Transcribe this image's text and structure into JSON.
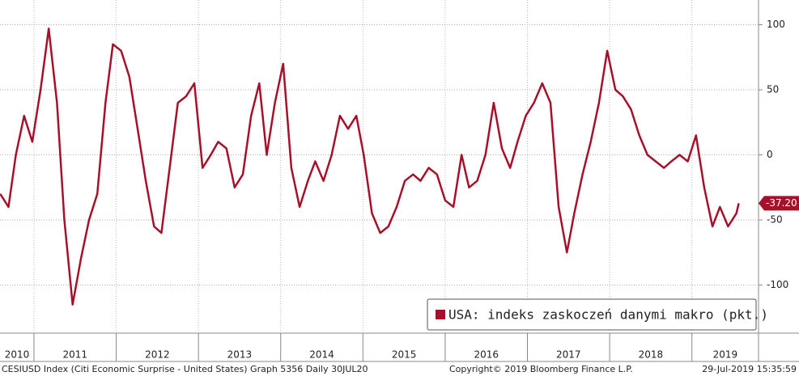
{
  "chart_data": {
    "type": "line",
    "x": [
      2010.59,
      2010.69,
      2010.78,
      2010.88,
      2010.98,
      2011.08,
      2011.18,
      2011.28,
      2011.37,
      2011.47,
      2011.57,
      2011.67,
      2011.77,
      2011.87,
      2011.96,
      2012.06,
      2012.16,
      2012.26,
      2012.36,
      2012.46,
      2012.55,
      2012.65,
      2012.75,
      2012.85,
      2012.95,
      2013.05,
      2013.15,
      2013.24,
      2013.34,
      2013.44,
      2013.54,
      2013.64,
      2013.74,
      2013.83,
      2013.93,
      2014.03,
      2014.13,
      2014.23,
      2014.33,
      2014.42,
      2014.52,
      2014.62,
      2014.72,
      2014.82,
      2014.92,
      2015.01,
      2015.11,
      2015.21,
      2015.31,
      2015.41,
      2015.51,
      2015.61,
      2015.7,
      2015.8,
      2015.9,
      2016.0,
      2016.1,
      2016.2,
      2016.29,
      2016.39,
      2016.49,
      2016.59,
      2016.69,
      2016.79,
      2016.88,
      2016.98,
      2017.08,
      2017.18,
      2017.28,
      2017.38,
      2017.48,
      2017.57,
      2017.67,
      2017.77,
      2017.87,
      2017.97,
      2018.07,
      2018.16,
      2018.26,
      2018.36,
      2018.46,
      2018.56,
      2018.66,
      2018.75,
      2018.85,
      2018.95,
      2019.05,
      2019.15,
      2019.25,
      2019.34,
      2019.44,
      2019.54,
      2019.57
    ],
    "series": [
      {
        "name": "USA: indeks zaskoczeń danymi makro (pkt.)",
        "color": "#a3122a",
        "values": [
          -30,
          -40,
          0,
          30,
          10,
          50,
          97,
          40,
          -50,
          -115,
          -80,
          -50,
          -30,
          40,
          85,
          80,
          60,
          20,
          -20,
          -55,
          -60,
          -10,
          40,
          45,
          55,
          -10,
          0,
          10,
          5,
          -25,
          -15,
          30,
          55,
          0,
          40,
          70,
          -10,
          -40,
          -20,
          -5,
          -20,
          0,
          30,
          20,
          30,
          0,
          -45,
          -60,
          -55,
          -40,
          -20,
          -15,
          -20,
          -10,
          -15,
          -35,
          -40,
          0,
          -25,
          -20,
          0,
          40,
          5,
          -10,
          10,
          30,
          40,
          55,
          40,
          -40,
          -75,
          -45,
          -15,
          10,
          40,
          80,
          50,
          45,
          35,
          15,
          0,
          -5,
          -10,
          -5,
          0,
          -5,
          15,
          -25,
          -55,
          -40,
          -55,
          -45,
          -37.2
        ]
      }
    ],
    "current_value_label": "-37.20",
    "xlim": [
      2010.587,
      2019.81
    ],
    "xticks": [
      2010,
      2011,
      2012,
      2013,
      2014,
      2015,
      2016,
      2017,
      2018,
      2019
    ],
    "ylim": [
      -137,
      119
    ],
    "yticks": [
      100,
      50,
      0,
      -50,
      -100
    ],
    "grid": true,
    "legend": "lower right",
    "footer": {
      "left": "CESIUSD Index (Citi Economic Surprise - United States) Graph 5356  Daily 30JUL20",
      "center": "Copyright© 2019 Bloomberg Finance L.P.",
      "right": "29-Jul-2019 15:35:59"
    }
  }
}
